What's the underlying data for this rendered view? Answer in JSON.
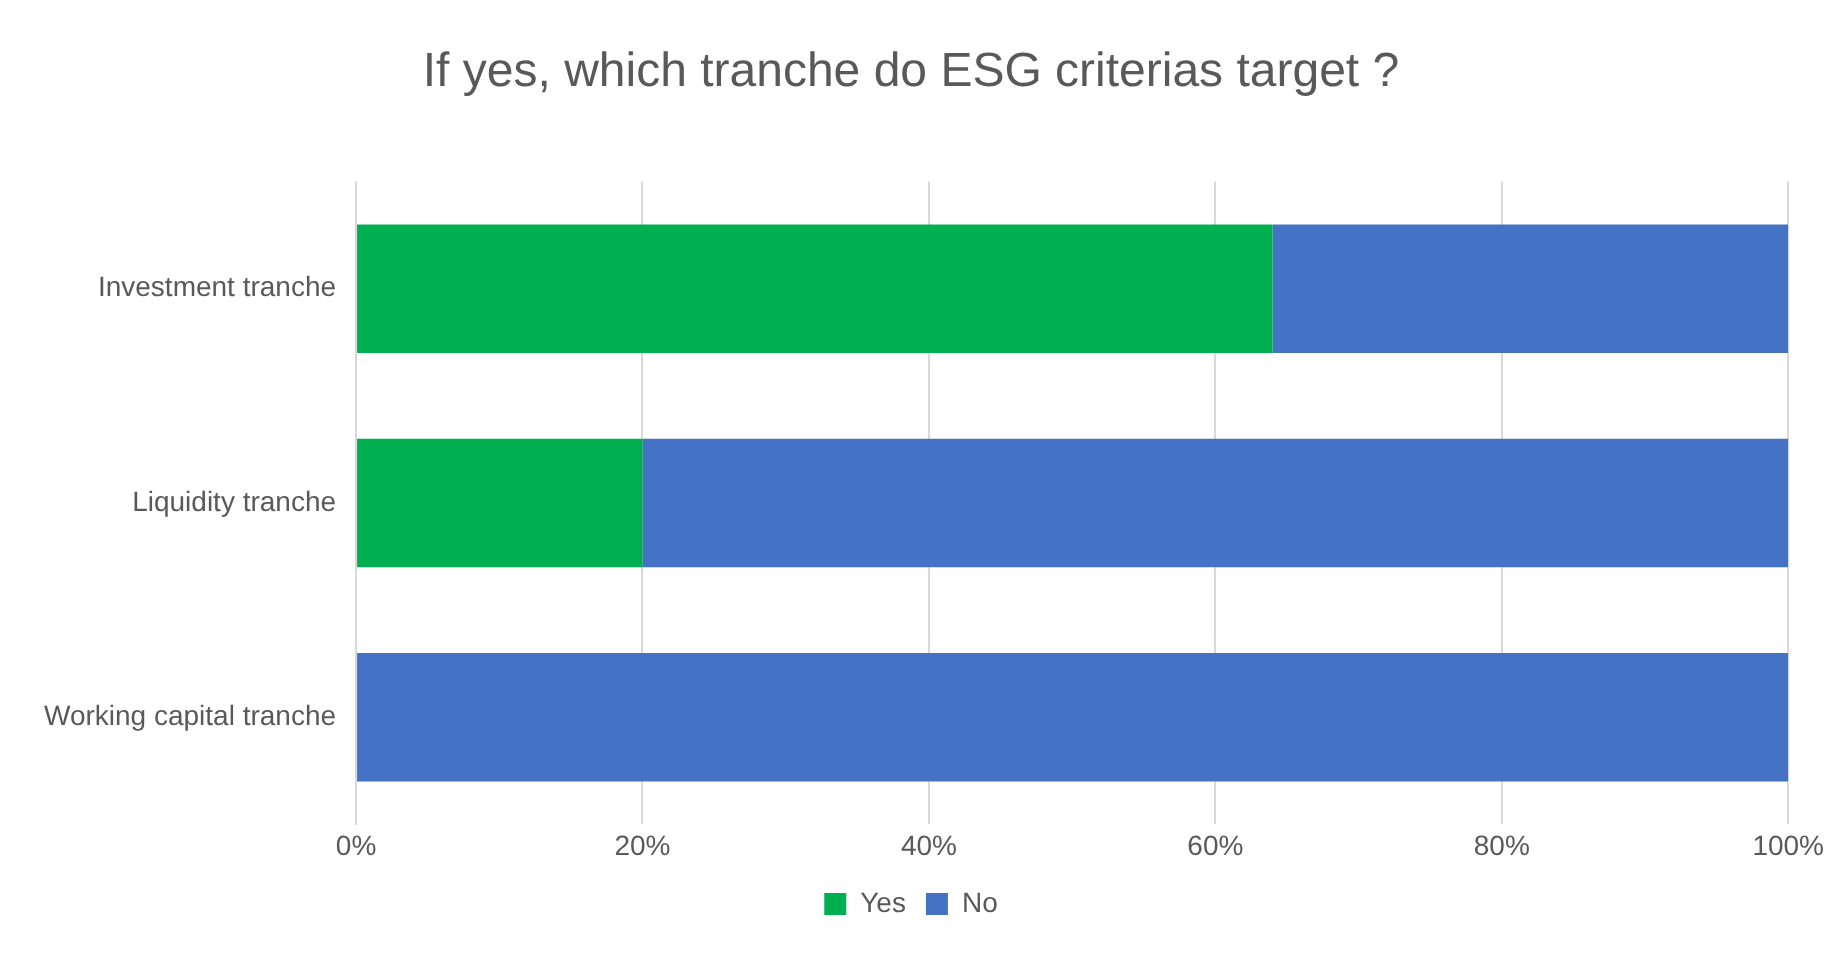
{
  "chart_data": {
    "type": "bar",
    "orientation": "horizontal",
    "stacked": true,
    "title": "If yes, which tranche do ESG criterias target ?",
    "categories": [
      "Investment tranche",
      "Liquidity tranche",
      "Working capital tranche"
    ],
    "series": [
      {
        "name": "Yes",
        "color": "#00b050",
        "values": [
          64,
          20,
          0
        ]
      },
      {
        "name": "No",
        "color": "#4472c4",
        "values": [
          36,
          80,
          100
        ]
      }
    ],
    "xlim": [
      0,
      100
    ],
    "xticks": [
      {
        "value": 0,
        "label": "0%"
      },
      {
        "value": 20,
        "label": "20%"
      },
      {
        "value": 40,
        "label": "40%"
      },
      {
        "value": 60,
        "label": "60%"
      },
      {
        "value": 80,
        "label": "80%"
      },
      {
        "value": 100,
        "label": "100%"
      }
    ],
    "grid": "x",
    "legend": "bottom"
  }
}
